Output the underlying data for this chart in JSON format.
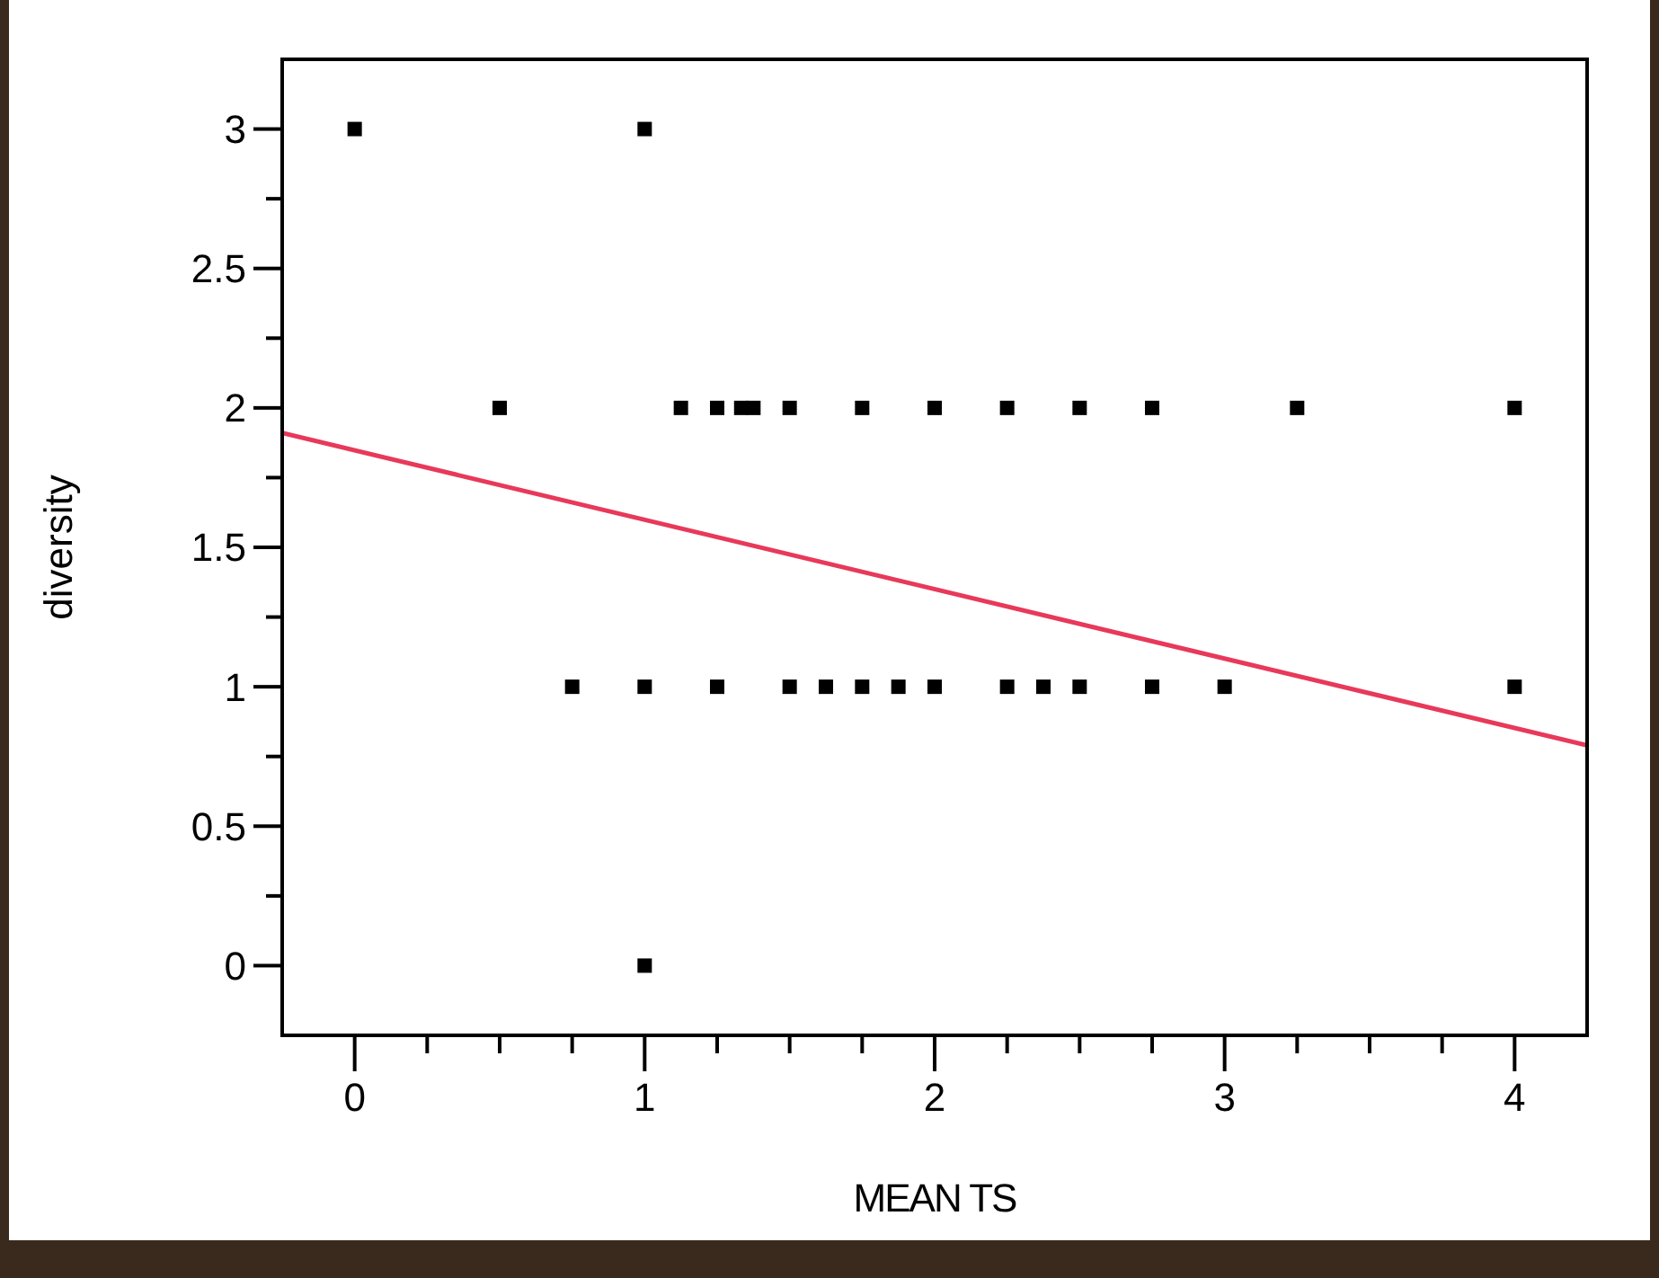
{
  "chart_data": {
    "type": "scatter",
    "xlabel": "MEAN TS",
    "ylabel": "diversity",
    "xlim": [
      -0.25,
      4.25
    ],
    "ylim": [
      -0.25,
      3.25
    ],
    "xticks": [
      0,
      {
        "value": 0.25,
        "label": null
      },
      {
        "value": 0.5,
        "label": null
      },
      {
        "value": 0.75,
        "label": null
      },
      1,
      {
        "value": 1.25,
        "label": null
      },
      {
        "value": 1.5,
        "label": null
      },
      {
        "value": 1.75,
        "label": null
      },
      2,
      {
        "value": 2.25,
        "label": null
      },
      {
        "value": 2.5,
        "label": null
      },
      {
        "value": 2.75,
        "label": null
      },
      3,
      {
        "value": 3.25,
        "label": null
      },
      {
        "value": 3.5,
        "label": null
      },
      {
        "value": 3.75,
        "label": null
      },
      4
    ],
    "yticks": [
      0,
      {
        "value": 0.25,
        "label": null
      },
      0.5,
      {
        "value": 0.75,
        "label": null
      },
      1,
      {
        "value": 1.25,
        "label": null
      },
      1.5,
      {
        "value": 1.75,
        "label": null
      },
      2,
      {
        "value": 2.25,
        "label": null
      },
      2.5,
      {
        "value": 2.75,
        "label": null
      },
      3
    ],
    "grid": false,
    "series": [
      {
        "marker": "square",
        "color": "#000000",
        "x": [
          0,
          1,
          1,
          0.75,
          1,
          1.25,
          1.5,
          1.625,
          1.75,
          1.875,
          2,
          2.25,
          2.375,
          2.5,
          2.75,
          3,
          4,
          0.5,
          1.125,
          1.25,
          1.333,
          1.375,
          1.5,
          1.75,
          2,
          2.25,
          2.5,
          2.75,
          3.25,
          4
        ],
        "values": [
          3,
          3,
          0,
          1,
          1,
          1,
          1,
          1,
          1,
          1,
          1,
          1,
          1,
          1,
          1,
          1,
          1,
          2,
          2,
          2,
          2,
          2,
          2,
          2,
          2,
          2,
          2,
          2,
          2,
          2
        ]
      },
      {
        "type": "line",
        "color": "#e8395a",
        "x": [
          -0.25,
          4.25
        ],
        "values": [
          1.91,
          0.79
        ]
      }
    ]
  }
}
